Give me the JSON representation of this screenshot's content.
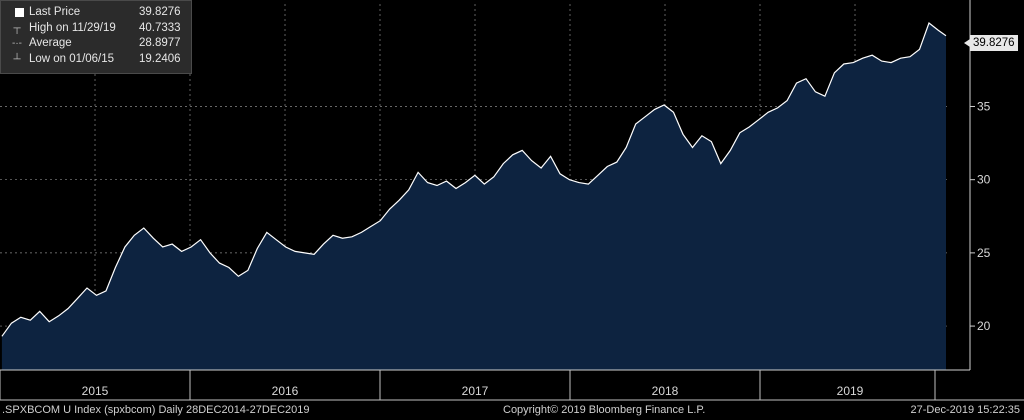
{
  "legend": {
    "rows": [
      {
        "icon": "square-icon",
        "label": "Last Price",
        "value": "39.8276"
      },
      {
        "icon": "high-marker-icon",
        "label": "High on 11/29/19",
        "value": "40.7333"
      },
      {
        "icon": "average-marker-icon",
        "label": "Average",
        "value": "28.8977"
      },
      {
        "icon": "low-marker-icon",
        "label": "Low on 01/06/15",
        "value": "19.2406"
      }
    ]
  },
  "last_tag": "39.8276",
  "footer": {
    "left": ".SPXBCOM U Index (spxbcom)  Daily 28DEC2014-27DEC2019",
    "center": "Copyright© 2019 Bloomberg Finance L.P.",
    "right": "27-Dec-2019 15:22:35"
  },
  "chart_data": {
    "type": "area",
    "x_ticks": [
      "2015",
      "2016",
      "2017",
      "2018",
      "2019"
    ],
    "y_ticks": [
      20,
      25,
      30,
      35
    ],
    "ylim": [
      17,
      42
    ],
    "grid": true,
    "fill_color": "#0d2340",
    "line_color": "#ffffff",
    "series": [
      {
        "x": [
          2015.0,
          2015.05,
          2015.1,
          2015.15,
          2015.2,
          2015.25,
          2015.3,
          2015.35,
          2015.4,
          2015.45,
          2015.5,
          2015.55,
          2015.6,
          2015.65,
          2015.7,
          2015.75,
          2015.8,
          2015.85,
          2015.9,
          2015.95,
          2016.0,
          2016.05,
          2016.1,
          2016.15,
          2016.2,
          2016.25,
          2016.3,
          2016.35,
          2016.4,
          2016.45,
          2016.5,
          2016.55,
          2016.6,
          2016.65,
          2016.7,
          2016.75,
          2016.8,
          2016.85,
          2016.9,
          2016.95,
          2017.0,
          2017.05,
          2017.1,
          2017.15,
          2017.2,
          2017.25,
          2017.3,
          2017.35,
          2017.4,
          2017.45,
          2017.5,
          2017.55,
          2017.6,
          2017.65,
          2017.7,
          2017.75,
          2017.8,
          2017.85,
          2017.9,
          2017.95,
          2018.0,
          2018.05,
          2018.1,
          2018.15,
          2018.2,
          2018.25,
          2018.3,
          2018.35,
          2018.4,
          2018.45,
          2018.5,
          2018.55,
          2018.6,
          2018.65,
          2018.7,
          2018.75,
          2018.8,
          2018.85,
          2018.9,
          2018.95,
          2019.0,
          2019.05,
          2019.1,
          2019.15,
          2019.2,
          2019.25,
          2019.3,
          2019.35,
          2019.4,
          2019.45,
          2019.5,
          2019.55,
          2019.6,
          2019.65,
          2019.7,
          2019.75,
          2019.8,
          2019.85,
          2019.9,
          2019.95,
          2019.99
        ],
        "y": [
          19.3,
          20.2,
          20.6,
          20.4,
          21.0,
          20.3,
          20.7,
          21.2,
          21.9,
          22.6,
          22.1,
          22.4,
          24.0,
          25.4,
          26.2,
          26.7,
          26.0,
          25.4,
          25.6,
          25.1,
          25.4,
          25.9,
          25.0,
          24.3,
          24.0,
          23.4,
          23.8,
          25.3,
          26.4,
          25.9,
          25.4,
          25.1,
          25.0,
          24.9,
          25.6,
          26.2,
          26.0,
          26.1,
          26.4,
          26.8,
          27.2,
          28.0,
          28.6,
          29.3,
          30.5,
          29.8,
          29.6,
          29.9,
          29.4,
          29.8,
          30.3,
          29.7,
          30.2,
          31.1,
          31.7,
          32.0,
          31.3,
          30.8,
          31.6,
          30.4,
          30.0,
          29.8,
          29.7,
          30.3,
          30.9,
          31.2,
          32.2,
          33.8,
          34.3,
          34.8,
          35.1,
          34.6,
          33.1,
          32.2,
          33.0,
          32.6,
          31.1,
          32.0,
          33.2,
          33.6,
          34.1,
          34.6,
          34.9,
          35.4,
          36.6,
          36.9,
          36.0,
          35.7,
          37.3,
          37.9,
          38.0,
          38.3,
          38.5,
          38.1,
          38.0,
          38.3,
          38.4,
          38.9,
          40.7,
          40.2,
          39.83
        ]
      }
    ]
  }
}
